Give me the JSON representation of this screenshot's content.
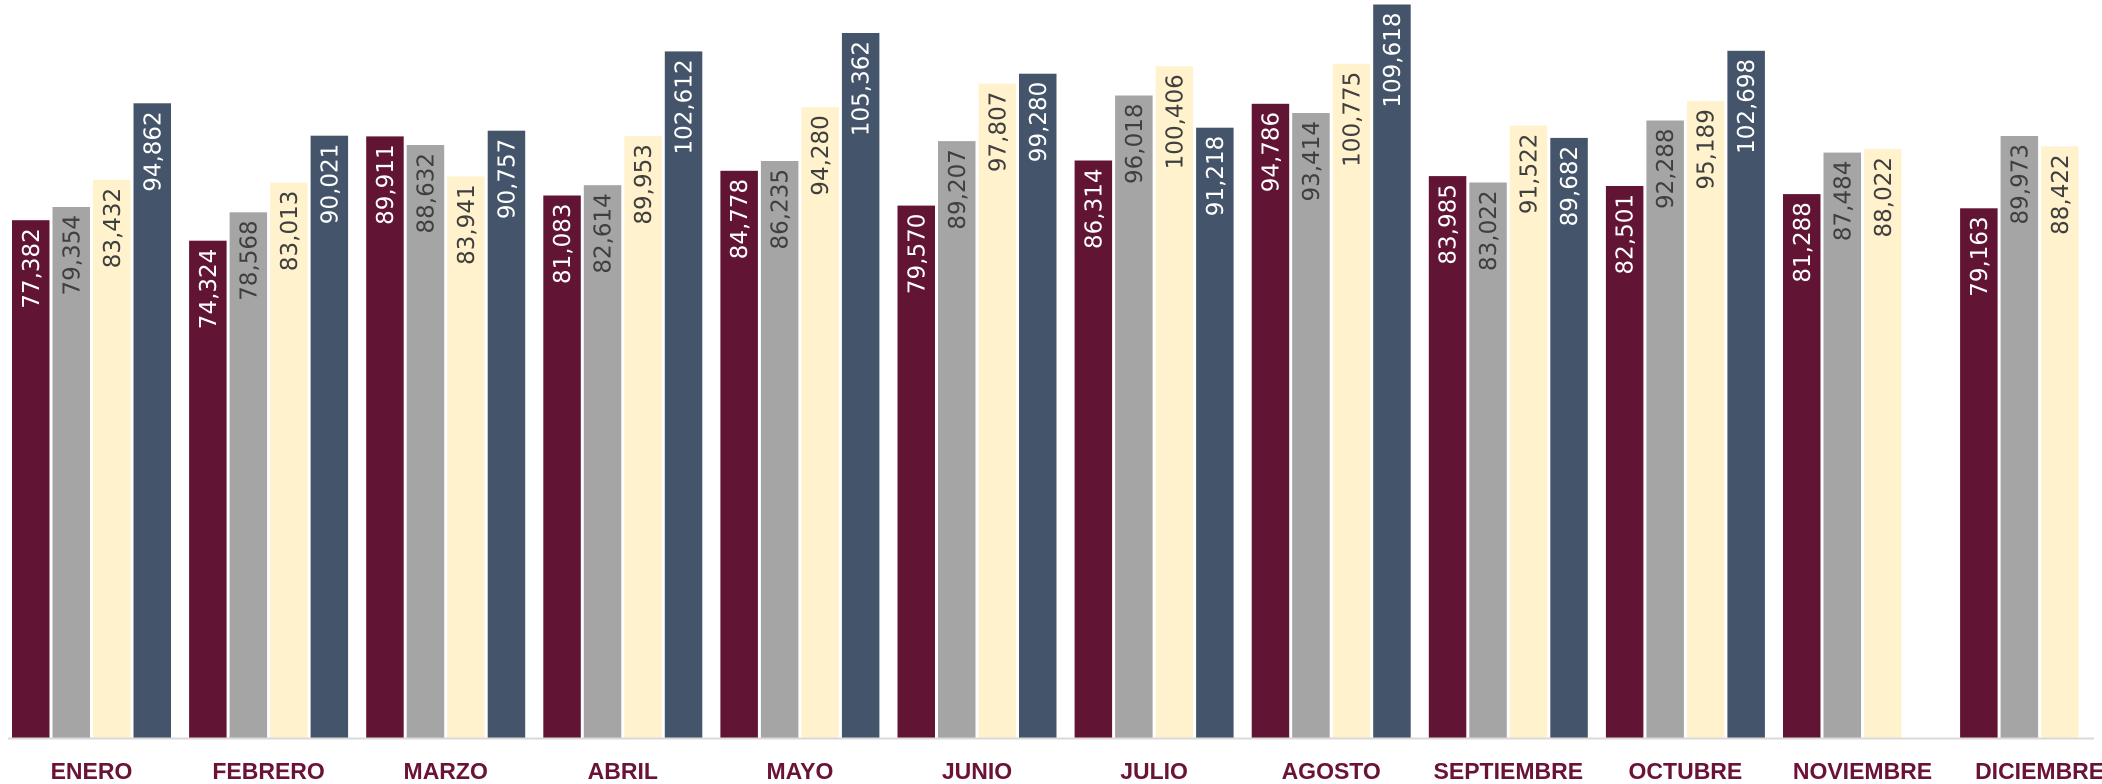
{
  "chart_data": {
    "type": "bar",
    "categories": [
      "ENERO",
      "FEBRERO",
      "MARZO",
      "ABRIL",
      "MAYO",
      "JUNIO",
      "JULIO",
      "AGOSTO",
      "SEPTIEMBRE",
      "OCTUBRE",
      "NOVIEMBRE",
      "DICIEMBRE"
    ],
    "series": [
      {
        "color": "#621435",
        "label_color": "#ffffff",
        "values": [
          77382,
          74324,
          89911,
          81083,
          84778,
          79570,
          86314,
          94786,
          83985,
          82501,
          81288,
          79163
        ],
        "labels": [
          "77,382",
          "74,324",
          "89,911",
          "81,083",
          "84,778",
          "79,570",
          "86,314",
          "94,786",
          "83,985",
          "82,501",
          "81,288",
          "79,163"
        ]
      },
      {
        "color": "#a5a5a5",
        "label_color": "#3f3f3f",
        "values": [
          79354,
          78568,
          88632,
          82614,
          86235,
          89207,
          96018,
          93414,
          83022,
          92288,
          87484,
          89973
        ],
        "labels": [
          "79,354",
          "78,568",
          "88,632",
          "82,614",
          "86,235",
          "89,207",
          "96,018",
          "93,414",
          "83,022",
          "92,288",
          "87,484",
          "89,973"
        ]
      },
      {
        "color": "#fff2cc",
        "label_color": "#3f3f3f",
        "values": [
          83432,
          83013,
          83941,
          89953,
          94280,
          97807,
          100406,
          100775,
          91522,
          95189,
          88022,
          88422
        ],
        "labels": [
          "83,432",
          "83,013",
          "83,941",
          "89,953",
          "94,280",
          "97,807",
          "100,406",
          "100,775",
          "91,522",
          "95,189",
          "88,022",
          "88,422"
        ]
      },
      {
        "color": "#44546a",
        "label_color": "#ffffff",
        "values": [
          94862,
          90021,
          90757,
          102612,
          105362,
          99280,
          91218,
          109618,
          89682,
          102698,
          null,
          null
        ],
        "labels": [
          "94,862",
          "90,021",
          "90,757",
          "102,612",
          "105,362",
          "99,280",
          "91,218",
          "109,618",
          "89,682",
          "102,698",
          "",
          ""
        ]
      }
    ],
    "ylim": [
      0,
      110000
    ],
    "xlabel": "",
    "ylabel": "",
    "title": "",
    "grid": false,
    "legend": "none"
  }
}
